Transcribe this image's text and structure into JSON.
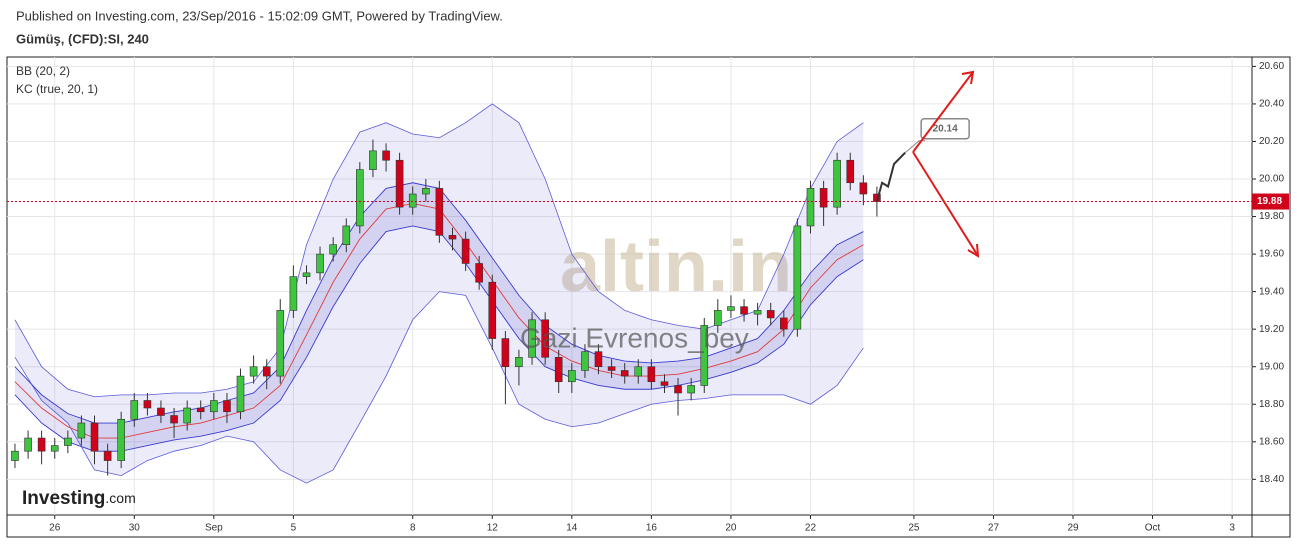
{
  "chart_data": {
    "type": "candlestick",
    "subtitle": "Published on Investing.com, 23/Sep/2016 - 15:02:09 GMT, Powered by TradingView.",
    "title": "Gümüş, (CFD):SI, 240",
    "legend": [
      "BB (20, 2)",
      "KC (true, 20, 1)"
    ],
    "watermarks": [
      "altin.in",
      "Gazi Evrenos_bey"
    ],
    "logo": [
      "Investing",
      ".com"
    ],
    "up_color": "#3ec43e",
    "down_color": "#d0021b",
    "grid": true,
    "xlim": [
      -1.2,
      30.1
    ],
    "ylim": [
      18.21,
      20.65
    ],
    "xticks": [
      {
        "value": 0,
        "label": "26"
      },
      {
        "value": 2,
        "label": "30"
      },
      {
        "value": 4,
        "label": "Sep"
      },
      {
        "value": 6,
        "label": "5"
      },
      {
        "value": 9,
        "label": "8"
      },
      {
        "value": 11,
        "label": "12"
      },
      {
        "value": 13,
        "label": "14"
      },
      {
        "value": 15,
        "label": "16"
      },
      {
        "value": 17,
        "label": "20"
      },
      {
        "value": 19,
        "label": "22"
      },
      {
        "value": 21.6,
        "label": "25"
      },
      {
        "value": 23.6,
        "label": "27"
      },
      {
        "value": 25.6,
        "label": "29"
      },
      {
        "value": 27.6,
        "label": "Oct"
      },
      {
        "value": 29.6,
        "label": "3"
      }
    ],
    "yticks": [
      {
        "value": 18.4,
        "label": "18.40"
      },
      {
        "value": 18.6,
        "label": "18.60"
      },
      {
        "value": 18.8,
        "label": "18.80"
      },
      {
        "value": 19,
        "label": "19.00"
      },
      {
        "value": 19.2,
        "label": "19.20"
      },
      {
        "value": 19.4,
        "label": "19.40"
      },
      {
        "value": 19.6,
        "label": "19.60"
      },
      {
        "value": 19.8,
        "label": "19.80"
      },
      {
        "value": 20,
        "label": "20.00"
      },
      {
        "value": 20.2,
        "label": "20.20"
      },
      {
        "value": 20.4,
        "label": "20.40"
      },
      {
        "value": 20.6,
        "label": "20.60"
      }
    ],
    "x": [
      -1,
      -0.67,
      -0.33,
      0,
      0.33,
      0.67,
      1,
      1.33,
      1.67,
      2,
      2.33,
      2.67,
      3,
      3.33,
      3.67,
      4,
      4.33,
      4.67,
      5,
      5.33,
      5.67,
      6,
      6.33,
      6.67,
      7,
      7.33,
      7.67,
      8,
      8.33,
      8.67,
      9,
      9.33,
      9.67,
      10,
      10.33,
      10.67,
      11,
      11.33,
      11.67,
      12,
      12.33,
      12.67,
      13,
      13.33,
      13.67,
      14,
      14.33,
      14.67,
      15,
      15.33,
      15.67,
      16,
      16.33,
      16.67,
      17,
      17.33,
      17.67,
      18,
      18.33,
      18.67,
      19,
      19.33,
      19.67,
      20,
      20.33,
      20.67
    ],
    "open": [
      18.5,
      18.55,
      18.62,
      18.55,
      18.58,
      18.62,
      18.7,
      18.55,
      18.5,
      18.72,
      18.82,
      18.78,
      18.74,
      18.7,
      18.78,
      18.76,
      18.82,
      18.76,
      18.95,
      19.0,
      18.95,
      19.3,
      19.48,
      19.5,
      19.6,
      19.65,
      19.75,
      20.05,
      20.15,
      20.1,
      19.85,
      19.92,
      19.95,
      19.7,
      19.68,
      19.55,
      19.45,
      19.15,
      19.0,
      19.05,
      19.25,
      19.05,
      18.92,
      18.98,
      19.08,
      19.0,
      18.98,
      18.95,
      19.0,
      18.92,
      18.9,
      18.86,
      18.9,
      19.22,
      19.3,
      19.32,
      19.28,
      19.3,
      19.26,
      19.2,
      19.75,
      19.95,
      19.85,
      20.1,
      19.98,
      19.92
    ],
    "high": [
      18.59,
      18.66,
      18.66,
      18.62,
      18.66,
      18.74,
      18.74,
      18.59,
      18.76,
      18.86,
      18.86,
      18.82,
      18.78,
      18.82,
      18.82,
      18.86,
      18.86,
      18.99,
      19.06,
      19.04,
      19.36,
      19.54,
      19.54,
      19.64,
      19.69,
      19.79,
      20.09,
      20.21,
      20.19,
      20.14,
      19.96,
      20.0,
      19.99,
      19.74,
      19.72,
      19.59,
      19.49,
      19.19,
      19.09,
      19.29,
      19.29,
      19.09,
      19.02,
      19.12,
      19.12,
      19.04,
      19.02,
      19.04,
      19.04,
      18.96,
      18.94,
      18.94,
      19.26,
      19.36,
      19.38,
      19.36,
      19.34,
      19.34,
      19.3,
      19.79,
      19.99,
      19.99,
      20.14,
      20.14,
      20.02,
      19.96
    ],
    "low": [
      18.46,
      18.51,
      18.48,
      18.51,
      18.54,
      18.58,
      18.48,
      18.42,
      18.46,
      18.68,
      18.74,
      18.7,
      18.62,
      18.66,
      18.72,
      18.72,
      18.7,
      18.72,
      18.91,
      18.88,
      18.91,
      19.26,
      19.44,
      19.46,
      19.56,
      19.61,
      19.71,
      20.01,
      20.04,
      19.81,
      19.81,
      19.88,
      19.66,
      19.62,
      19.51,
      19.41,
      19.09,
      18.8,
      18.9,
      19.01,
      19.01,
      18.86,
      18.86,
      18.94,
      18.96,
      18.94,
      18.91,
      18.91,
      18.88,
      18.86,
      18.74,
      18.82,
      18.86,
      19.18,
      19.26,
      19.24,
      19.22,
      19.22,
      19.16,
      19.16,
      19.71,
      19.75,
      19.81,
      19.94,
      19.86,
      19.8
    ],
    "close": [
      18.55,
      18.62,
      18.55,
      18.58,
      18.62,
      18.7,
      18.55,
      18.5,
      18.72,
      18.82,
      18.78,
      18.74,
      18.7,
      18.78,
      18.76,
      18.82,
      18.76,
      18.95,
      19.0,
      18.95,
      19.3,
      19.48,
      19.5,
      19.6,
      19.65,
      19.75,
      20.05,
      20.15,
      20.1,
      19.85,
      19.92,
      19.95,
      19.7,
      19.68,
      19.55,
      19.45,
      19.15,
      19.0,
      19.05,
      19.25,
      19.05,
      18.92,
      18.98,
      19.08,
      19.0,
      18.98,
      18.95,
      19.0,
      18.92,
      18.9,
      18.86,
      18.9,
      19.22,
      19.3,
      19.32,
      19.28,
      19.3,
      19.26,
      19.2,
      19.75,
      19.95,
      19.85,
      20.1,
      19.98,
      19.92,
      19.88
    ],
    "band_x": [
      -1,
      -0.33,
      0.33,
      1,
      1.67,
      2.33,
      3,
      3.67,
      4.33,
      5,
      5.67,
      6.33,
      7,
      7.67,
      8.33,
      9,
      9.67,
      10.33,
      11,
      11.67,
      12.33,
      13,
      13.67,
      14.33,
      15,
      15.67,
      16.33,
      17,
      17.67,
      18.33,
      19,
      19.67,
      20.33
    ],
    "indicators": [
      {
        "name": "BB (20, 2)",
        "color": "#5a5ad8",
        "upper": [
          19.25,
          19.0,
          18.88,
          18.84,
          18.85,
          18.85,
          18.86,
          18.86,
          18.88,
          18.92,
          19.1,
          19.65,
          20.0,
          20.25,
          20.3,
          20.24,
          20.22,
          20.3,
          20.4,
          20.3,
          20.0,
          19.6,
          19.4,
          19.3,
          19.25,
          19.22,
          19.2,
          19.25,
          19.3,
          19.6,
          19.95,
          20.2,
          20.3
        ],
        "lower": [
          19.05,
          18.82,
          18.7,
          18.45,
          18.42,
          18.5,
          18.55,
          18.58,
          18.63,
          18.6,
          18.45,
          18.38,
          18.45,
          18.7,
          18.95,
          19.25,
          19.4,
          19.38,
          19.1,
          18.8,
          18.72,
          18.68,
          18.7,
          18.75,
          18.8,
          18.82,
          18.83,
          18.85,
          18.85,
          18.85,
          18.8,
          18.9,
          19.1
        ]
      },
      {
        "name": "KC (true, 20, 1)",
        "color": "#3a3ad0",
        "middle_color": "#e03a3a",
        "upper": [
          19.0,
          18.85,
          18.75,
          18.7,
          18.7,
          18.73,
          18.76,
          18.78,
          18.82,
          18.86,
          19.0,
          19.3,
          19.58,
          19.8,
          19.95,
          19.98,
          19.95,
          19.78,
          19.58,
          19.38,
          19.22,
          19.12,
          19.06,
          19.03,
          19.02,
          19.03,
          19.05,
          19.1,
          19.15,
          19.3,
          19.5,
          19.65,
          19.72
        ],
        "middle": [
          18.92,
          18.78,
          18.68,
          18.62,
          18.62,
          18.65,
          18.68,
          18.7,
          18.74,
          18.78,
          18.9,
          19.17,
          19.45,
          19.68,
          19.84,
          19.87,
          19.84,
          19.66,
          19.46,
          19.26,
          19.11,
          19.03,
          18.98,
          18.95,
          18.95,
          18.96,
          18.99,
          19.03,
          19.08,
          19.2,
          19.42,
          19.57,
          19.65
        ],
        "lower": [
          18.85,
          18.7,
          18.6,
          18.55,
          18.55,
          18.58,
          18.61,
          18.63,
          18.66,
          18.7,
          18.82,
          19.05,
          19.32,
          19.55,
          19.72,
          19.75,
          19.72,
          19.55,
          19.35,
          19.15,
          19.0,
          18.94,
          18.9,
          18.88,
          18.88,
          18.9,
          18.93,
          18.97,
          19.02,
          19.12,
          19.33,
          19.48,
          19.57
        ]
      }
    ],
    "projection": {
      "x": [
        20.67,
        20.8,
        20.95,
        21.1,
        21.38
      ],
      "values": [
        19.88,
        19.98,
        19.96,
        20.08,
        20.14
      ]
    }
  }
}
